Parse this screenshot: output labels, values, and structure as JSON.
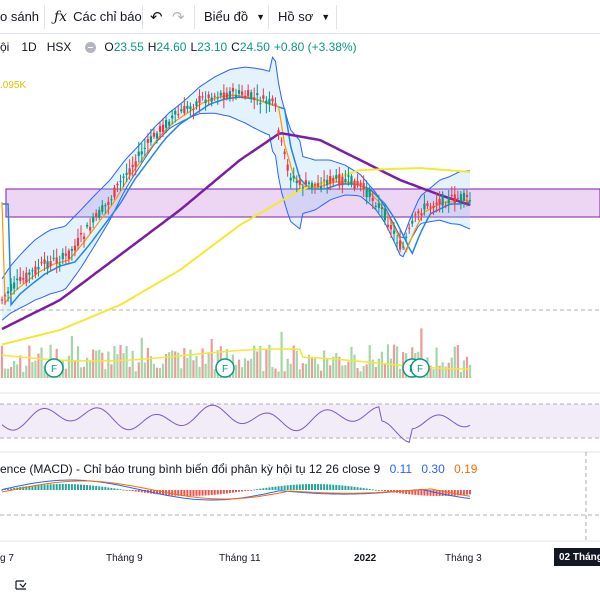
{
  "toolbar": {
    "compare_label": "o sánh",
    "indicators_label": "Các chỉ báo",
    "chart_label": "Biểu đồ",
    "profile_label": "Hồ sơ"
  },
  "legend": {
    "name_fragment": "ội",
    "interval": "1D",
    "exchange": "HSX",
    "open_key": "O",
    "open": "23.55",
    "high_key": "H",
    "high": "24.60",
    "low_key": "L",
    "low": "23.10",
    "close_key": "C",
    "close": "24.50",
    "change": "+0.80 (+3.38%)"
  },
  "volume_label": ".095K",
  "macd_legend": {
    "text": "ence (MACD) - Chỉ báo trung bình biến đổi phân kỳ hội tụ 12 26 close 9",
    "macd": "0.11",
    "signal": "0.30",
    "hist": "0.19"
  },
  "x_axis": {
    "labels": [
      "g 7",
      "Tháng 9",
      "Tháng 11",
      "2022",
      "Tháng 3"
    ],
    "current_badge": "02 Tháng"
  },
  "event_markers": [
    "F",
    "F",
    "F",
    "F"
  ],
  "icons": [
    "fx-icon",
    "undo-icon",
    "redo-icon",
    "chevron-down-icon",
    "eye-icon",
    "chart-toggle-icon"
  ],
  "colors": {
    "up": "#089981",
    "down": "#f23645",
    "bollinger": "#2962ff",
    "ma_purple": "#7b1fa2",
    "ma_yellow": "#f5e830",
    "ma_orange": "#ff9800",
    "zone": "#d8b4e8",
    "rsi": "#7e57c2"
  }
}
